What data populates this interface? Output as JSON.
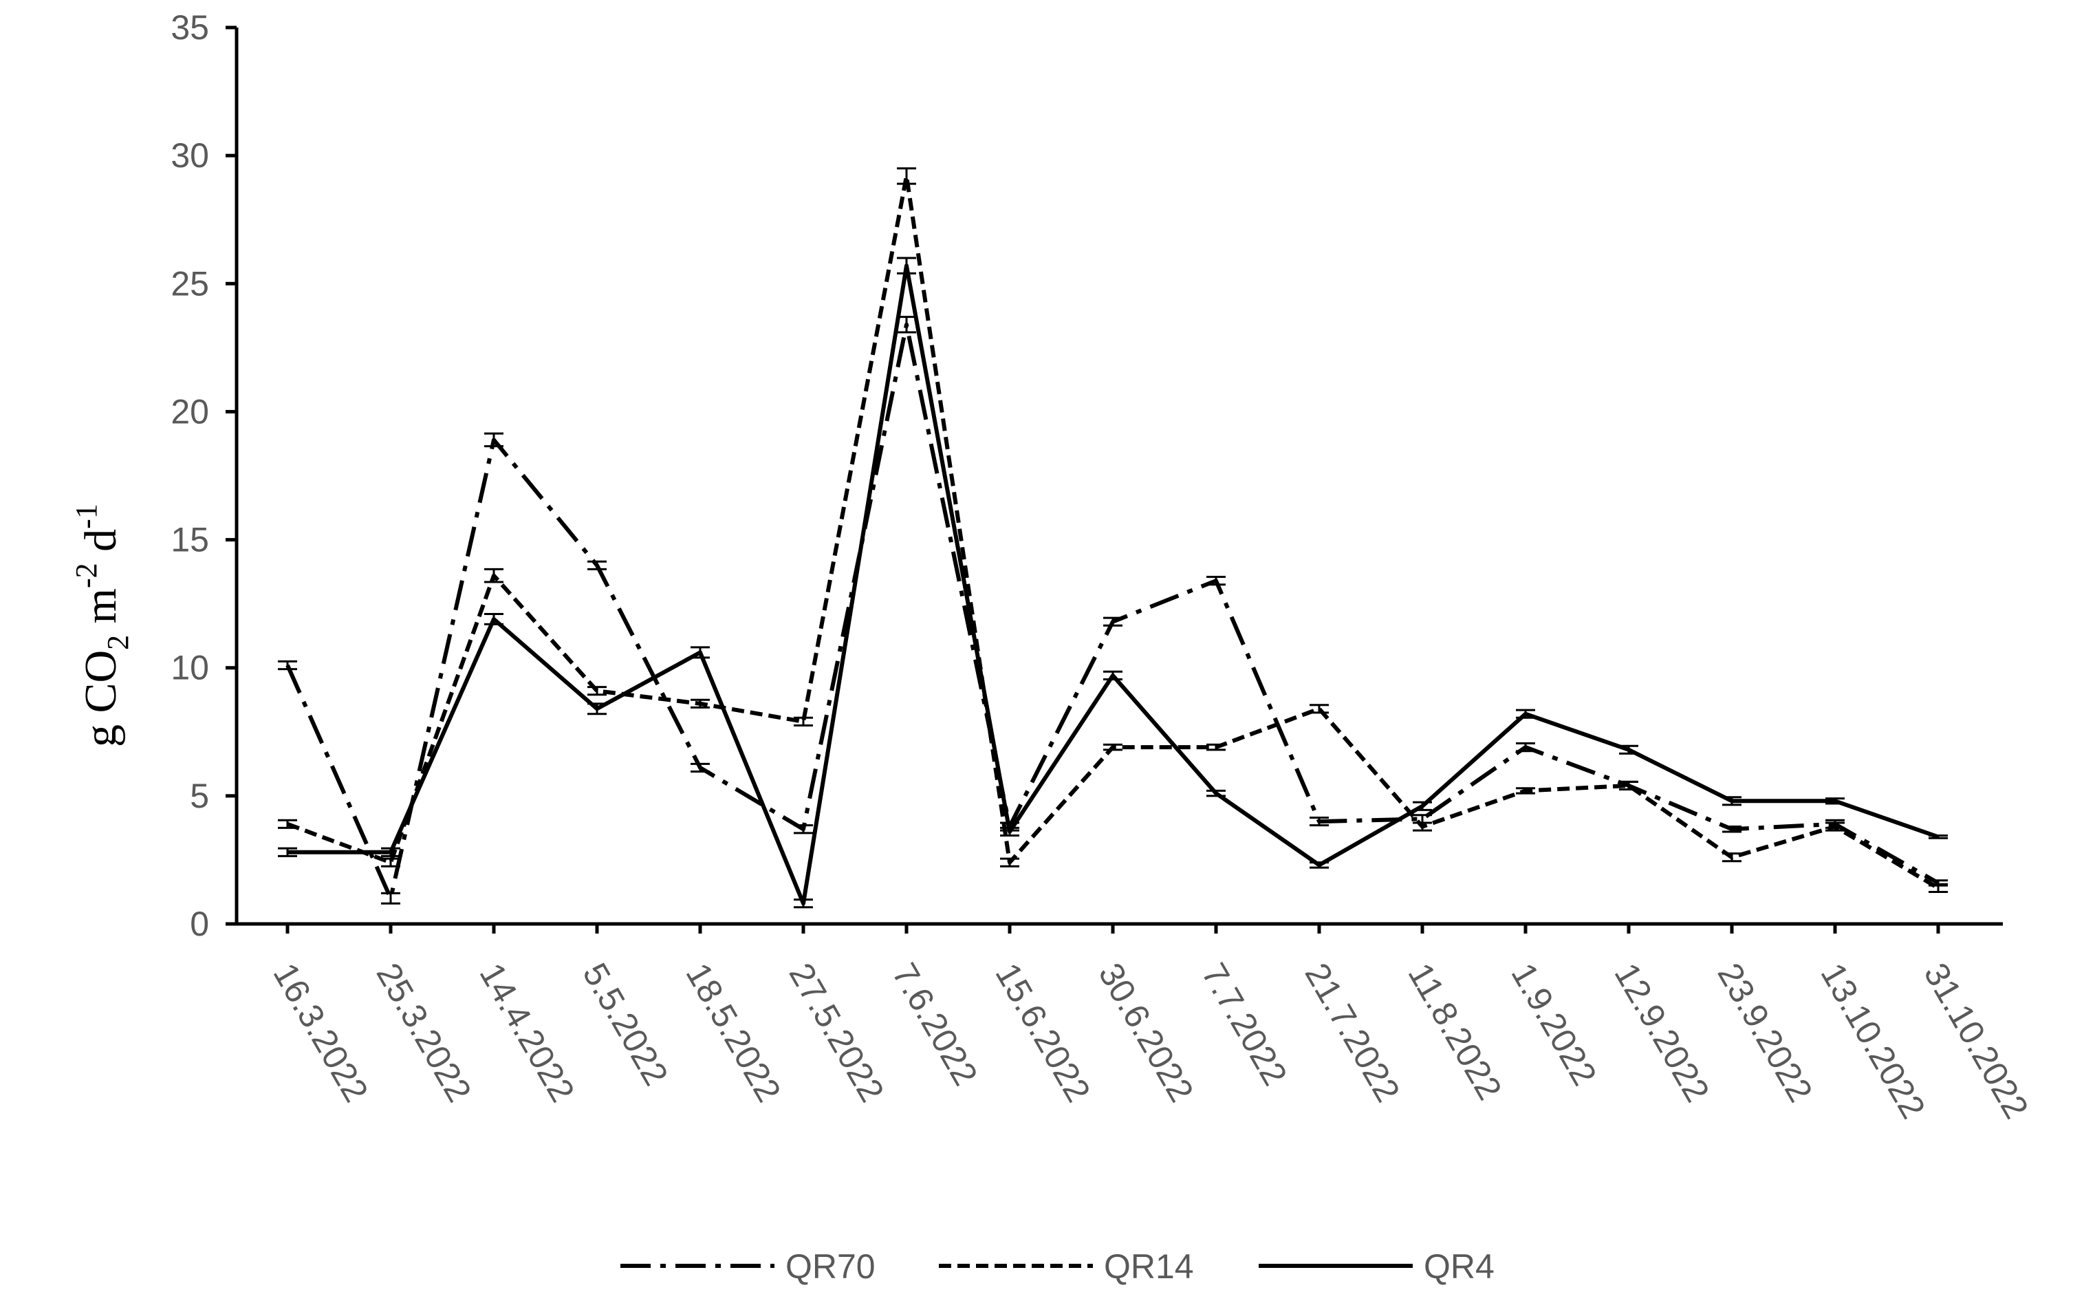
{
  "chart_data": {
    "type": "line",
    "title": "",
    "xlabel": "",
    "ylabel": {
      "main": "g CO",
      "sub": "2",
      "unit1": " m",
      "sup1": "-2",
      "unit2": " d",
      "sup2": "-1"
    },
    "ylim": [
      0,
      35
    ],
    "y_ticks": [
      "0",
      "5",
      "10",
      "15",
      "20",
      "25",
      "30",
      "35"
    ],
    "grid": false,
    "legend_position": "bottom-center",
    "categories": [
      "16.3.2022",
      "25.3.2022",
      "14.4.2022",
      "5.5.2022",
      "18.5.2022",
      "27.5.2022",
      "7.6.2022",
      "15.6.2022",
      "30.6.2022",
      "7.7.2022",
      "21.7.2022",
      "11.8.2022",
      "1.9.2022",
      "12.9.2022",
      "23.9.2022",
      "13.10.2022",
      "31.10.2022"
    ],
    "series": [
      {
        "name": "QR70",
        "style": "dash-dot",
        "values": [
          10.1,
          1.0,
          18.9,
          14.0,
          6.1,
          3.7,
          23.4,
          3.8,
          11.8,
          13.4,
          4.0,
          4.1,
          6.9,
          5.4,
          3.7,
          3.9,
          1.6
        ],
        "errors": [
          0.15,
          0.2,
          0.25,
          0.15,
          0.15,
          0.15,
          0.3,
          0.15,
          0.15,
          0.15,
          0.15,
          0.15,
          0.15,
          0.15,
          0.1,
          0.15,
          0.1
        ]
      },
      {
        "name": "QR14",
        "style": "dashed",
        "values": [
          3.9,
          2.4,
          13.6,
          9.1,
          8.6,
          7.9,
          29.2,
          2.4,
          6.9,
          6.9,
          8.4,
          3.8,
          5.2,
          5.4,
          2.6,
          3.8,
          1.4
        ],
        "errors": [
          0.15,
          0.15,
          0.25,
          0.15,
          0.15,
          0.15,
          0.3,
          0.15,
          0.1,
          0.1,
          0.15,
          0.15,
          0.1,
          0.15,
          0.15,
          0.15,
          0.15
        ]
      },
      {
        "name": "QR4",
        "style": "solid",
        "values": [
          2.8,
          2.8,
          11.9,
          8.4,
          10.6,
          0.8,
          25.7,
          3.6,
          9.7,
          5.1,
          2.3,
          4.6,
          8.2,
          6.8,
          4.8,
          4.8,
          3.4
        ],
        "errors": [
          0.15,
          0.15,
          0.2,
          0.2,
          0.2,
          0.15,
          0.3,
          0.15,
          0.15,
          0.1,
          0.1,
          0.15,
          0.15,
          0.15,
          0.15,
          0.1,
          0.05
        ]
      }
    ]
  }
}
